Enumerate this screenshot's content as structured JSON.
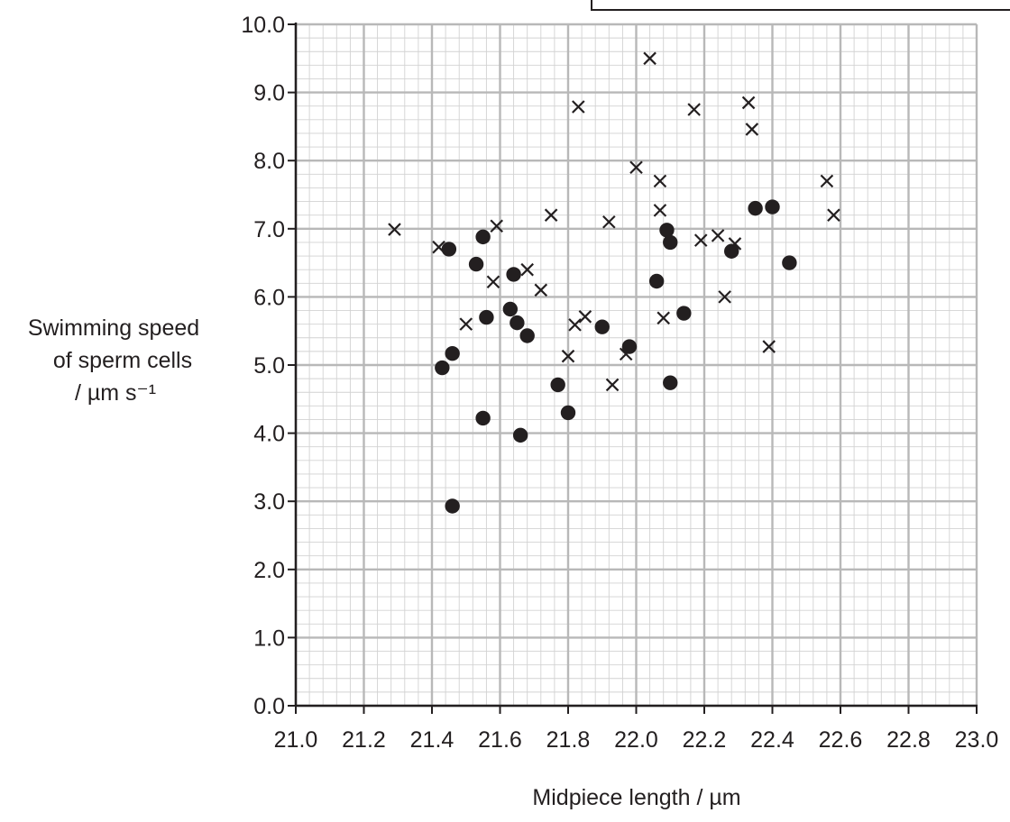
{
  "chart_data": {
    "type": "scatter",
    "title": "",
    "xlabel": "Midpiece length / µm",
    "ylabel_lines": [
      "Swimming speed",
      "of sperm cells",
      "/ µm s⁻¹"
    ],
    "xlim": [
      21.0,
      23.0
    ],
    "ylim": [
      0.0,
      10.0
    ],
    "x_ticks": [
      "21.0",
      "21.2",
      "21.4",
      "21.6",
      "21.8",
      "22.0",
      "22.2",
      "22.4",
      "22.6",
      "22.8",
      "23.0"
    ],
    "y_ticks": [
      "0.0",
      "1.0",
      "2.0",
      "3.0",
      "4.0",
      "5.0",
      "6.0",
      "7.0",
      "8.0",
      "9.0",
      "10.0"
    ],
    "grid": true,
    "series": [
      {
        "marker": "circle",
        "color": "#231f20",
        "points": [
          [
            21.45,
            6.7
          ],
          [
            21.55,
            6.88
          ],
          [
            21.53,
            6.48
          ],
          [
            21.64,
            6.33
          ],
          [
            21.63,
            5.82
          ],
          [
            21.65,
            5.62
          ],
          [
            21.56,
            5.7
          ],
          [
            21.68,
            5.43
          ],
          [
            21.43,
            4.96
          ],
          [
            21.46,
            5.17
          ],
          [
            21.55,
            4.22
          ],
          [
            21.66,
            3.97
          ],
          [
            21.46,
            2.93
          ],
          [
            21.77,
            4.71
          ],
          [
            21.8,
            4.3
          ],
          [
            21.9,
            5.56
          ],
          [
            21.98,
            5.27
          ],
          [
            22.06,
            6.23
          ],
          [
            22.09,
            6.98
          ],
          [
            22.1,
            6.8
          ],
          [
            22.14,
            5.76
          ],
          [
            22.1,
            4.74
          ],
          [
            22.28,
            6.67
          ],
          [
            22.35,
            7.3
          ],
          [
            22.4,
            7.32
          ],
          [
            22.45,
            6.5
          ]
        ]
      },
      {
        "marker": "cross",
        "color": "#231f20",
        "points": [
          [
            21.29,
            6.99
          ],
          [
            21.42,
            6.73
          ],
          [
            21.5,
            5.6
          ],
          [
            21.58,
            6.22
          ],
          [
            21.59,
            7.04
          ],
          [
            21.68,
            6.4
          ],
          [
            21.72,
            6.1
          ],
          [
            21.75,
            7.2
          ],
          [
            21.83,
            8.79
          ],
          [
            21.8,
            5.13
          ],
          [
            21.82,
            5.59
          ],
          [
            21.85,
            5.71
          ],
          [
            21.92,
            7.1
          ],
          [
            21.93,
            4.71
          ],
          [
            21.97,
            5.16
          ],
          [
            22.0,
            7.9
          ],
          [
            22.04,
            9.5
          ],
          [
            22.07,
            7.7
          ],
          [
            22.07,
            7.27
          ],
          [
            22.08,
            5.69
          ],
          [
            22.17,
            8.75
          ],
          [
            22.19,
            6.83
          ],
          [
            22.24,
            6.9
          ],
          [
            22.26,
            6.0
          ],
          [
            22.29,
            6.78
          ],
          [
            22.33,
            8.85
          ],
          [
            22.34,
            8.46
          ],
          [
            22.39,
            5.27
          ],
          [
            22.56,
            7.7
          ],
          [
            22.58,
            7.2
          ]
        ]
      }
    ]
  }
}
